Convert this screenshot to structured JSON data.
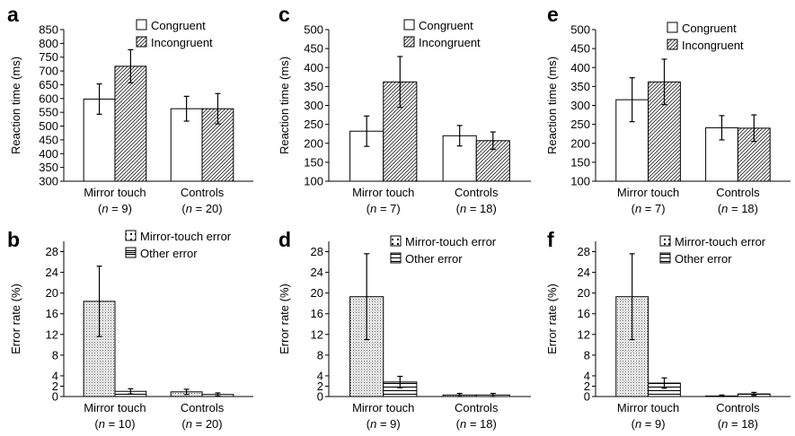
{
  "chart_data": [
    {
      "panel": "a",
      "type": "bar",
      "ylabel": "Reaction time (ms)",
      "ylim": [
        300,
        850
      ],
      "yticks": [
        300,
        350,
        400,
        450,
        500,
        550,
        600,
        650,
        700,
        750,
        800,
        850
      ],
      "categories": [
        {
          "name": "Mirror touch",
          "n_prefix": "(",
          "n_var": "n",
          "n_suffix": " = 9)"
        },
        {
          "name": "Controls",
          "n_prefix": "(",
          "n_var": "n",
          "n_suffix": " = 20)"
        }
      ],
      "series": [
        {
          "name": "Congruent",
          "pattern": "white",
          "values": [
            598,
            563
          ],
          "errors": [
            55,
            45
          ]
        },
        {
          "name": "Incongruent",
          "pattern": "diag",
          "values": [
            717,
            563
          ],
          "errors": [
            60,
            55
          ]
        }
      ],
      "legend": "top-right"
    },
    {
      "panel": "c",
      "type": "bar",
      "ylabel": "Reaction time (ms)",
      "ylim": [
        100,
        500
      ],
      "yticks": [
        100,
        150,
        200,
        250,
        300,
        350,
        400,
        450,
        500
      ],
      "categories": [
        {
          "name": "Mirror touch",
          "n_prefix": "(",
          "n_var": "n",
          "n_suffix": " = 7)"
        },
        {
          "name": "Controls",
          "n_prefix": "(",
          "n_var": "n",
          "n_suffix": " = 18)"
        }
      ],
      "series": [
        {
          "name": "Congruent",
          "pattern": "white",
          "values": [
            232,
            220
          ],
          "errors": [
            40,
            27
          ]
        },
        {
          "name": "Incongruent",
          "pattern": "diag",
          "values": [
            362,
            207
          ],
          "errors": [
            67,
            23
          ]
        }
      ],
      "legend": "top-right"
    },
    {
      "panel": "e",
      "type": "bar",
      "ylabel": "Reaction time (ms)",
      "ylim": [
        100,
        500
      ],
      "yticks": [
        100,
        150,
        200,
        250,
        300,
        350,
        400,
        450,
        500
      ],
      "categories": [
        {
          "name": "Mirror touch",
          "n_prefix": "(",
          "n_var": "n",
          "n_suffix": " = 7)"
        },
        {
          "name": "Controls",
          "n_prefix": "(",
          "n_var": "n",
          "n_suffix": " = 18)"
        }
      ],
      "series": [
        {
          "name": "Congruent",
          "pattern": "white",
          "values": [
            315,
            241
          ],
          "errors": [
            58,
            32
          ]
        },
        {
          "name": "Incongruent",
          "pattern": "diag",
          "values": [
            362,
            240
          ],
          "errors": [
            60,
            35
          ]
        }
      ],
      "legend": "top-right"
    },
    {
      "panel": "b",
      "type": "bar",
      "ylabel": "Error rate (%)",
      "ylim": [
        0,
        30
      ],
      "yticks": [
        0,
        2,
        4,
        8,
        12,
        16,
        20,
        24,
        28
      ],
      "categories": [
        {
          "name": "Mirror touch",
          "n_prefix": "(",
          "n_var": "n",
          "n_suffix": " = 10)"
        },
        {
          "name": "Controls",
          "n_prefix": "(",
          "n_var": "n",
          "n_suffix": " = 20)"
        }
      ],
      "series": [
        {
          "name": "Mirror-touch error",
          "pattern": "dots",
          "values": [
            18.4,
            0.9
          ],
          "errors": [
            6.8,
            0.5
          ]
        },
        {
          "name": "Other error",
          "pattern": "hlines",
          "values": [
            1.0,
            0.4
          ],
          "errors": [
            0.5,
            0.3
          ]
        }
      ],
      "legend": "top-right"
    },
    {
      "panel": "d",
      "type": "bar",
      "ylabel": "Error rate (%)",
      "ylim": [
        0,
        30
      ],
      "yticks": [
        0,
        2,
        4,
        8,
        12,
        16,
        20,
        24,
        28
      ],
      "categories": [
        {
          "name": "Mirror touch",
          "n_prefix": "(",
          "n_var": "n",
          "n_suffix": " = 9)"
        },
        {
          "name": "Controls",
          "n_prefix": "(",
          "n_var": "n",
          "n_suffix": " = 18)"
        }
      ],
      "series": [
        {
          "name": "Mirror-touch error",
          "pattern": "dots",
          "values": [
            19.3,
            0.3
          ],
          "errors": [
            8.3,
            0.3
          ]
        },
        {
          "name": "Other error",
          "pattern": "hlines",
          "values": [
            2.8,
            0.3
          ],
          "errors": [
            1.1,
            0.3
          ]
        }
      ],
      "legend": "top-right"
    },
    {
      "panel": "f",
      "type": "bar",
      "ylabel": "Error rate (%)",
      "ylim": [
        0,
        30
      ],
      "yticks": [
        0,
        2,
        4,
        8,
        12,
        16,
        20,
        24,
        28
      ],
      "categories": [
        {
          "name": "Mirror touch",
          "n_prefix": "(",
          "n_var": "n",
          "n_suffix": " = 9)"
        },
        {
          "name": "Controls",
          "n_prefix": "(",
          "n_var": "n",
          "n_suffix": " = 18)"
        }
      ],
      "series": [
        {
          "name": "Mirror-touch error",
          "pattern": "dots",
          "values": [
            19.3,
            0.1
          ],
          "errors": [
            8.3,
            0.2
          ]
        },
        {
          "name": "Other error",
          "pattern": "hlines",
          "values": [
            2.6,
            0.5
          ],
          "errors": [
            1.0,
            0.3
          ]
        }
      ],
      "legend": "top-right"
    }
  ]
}
